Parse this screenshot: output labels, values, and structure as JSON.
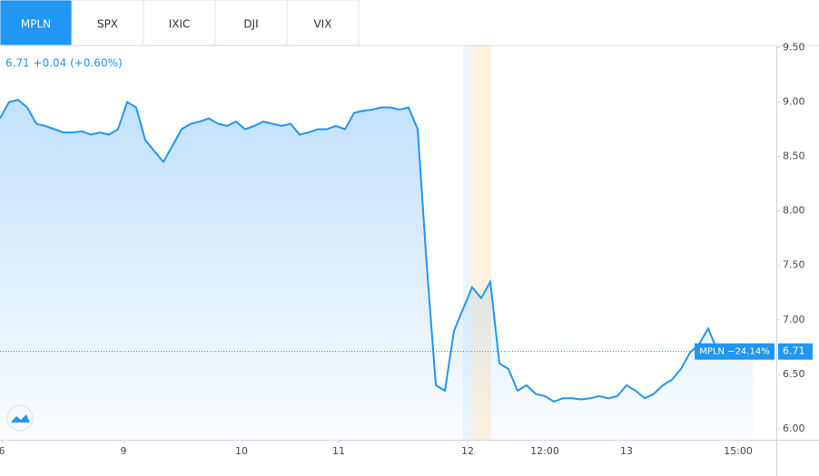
{
  "tabs": [
    "MPLN",
    "SPX",
    "IXIC",
    "DJI",
    "VIX"
  ],
  "chart_data": {
    "type": "line",
    "header": "6.71 +0.04 (+0.60%)",
    "series": [
      {
        "name": "MPLN",
        "color": "#2196f3",
        "values": [
          8.85,
          9.0,
          9.02,
          8.95,
          8.8,
          8.78,
          8.75,
          8.72,
          8.72,
          8.73,
          8.7,
          8.72,
          8.7,
          8.75,
          9.0,
          8.95,
          8.65,
          8.55,
          8.45,
          8.6,
          8.75,
          8.8,
          8.82,
          8.85,
          8.8,
          8.78,
          8.82,
          8.75,
          8.78,
          8.82,
          8.8,
          8.78,
          8.8,
          8.7,
          8.72,
          8.75,
          8.75,
          8.78,
          8.75,
          8.9,
          8.92,
          8.93,
          8.95,
          8.95,
          8.93,
          8.95,
          8.75,
          7.5,
          6.4,
          6.35,
          6.9,
          7.1,
          7.3,
          7.2,
          7.35,
          6.6,
          6.55,
          6.35,
          6.4,
          6.32,
          6.3,
          6.25,
          6.28,
          6.28,
          6.27,
          6.28,
          6.3,
          6.28,
          6.3,
          6.4,
          6.35,
          6.28,
          6.32,
          6.4,
          6.45,
          6.55,
          6.7,
          6.78,
          6.92,
          6.72,
          6.7,
          6.72,
          6.7,
          6.71
        ]
      }
    ],
    "xlim": [
      0,
      85.5
    ],
    "xticks": [
      {
        "value": 0.2,
        "label": "6"
      },
      {
        "value": 13.6,
        "label": "9"
      },
      {
        "value": 26.6,
        "label": "10"
      },
      {
        "value": 37.3,
        "label": "11"
      },
      {
        "value": 51.5,
        "label": "12"
      },
      {
        "value": 60,
        "label": "12:00"
      },
      {
        "value": 69,
        "label": "13"
      },
      {
        "value": 81.3,
        "label": "15:00"
      }
    ],
    "ylim": [
      5.9,
      9.52
    ],
    "yticks": [
      {
        "value": 6,
        "label": "6.00"
      },
      {
        "value": 6.5,
        "label": "6.50"
      },
      {
        "value": 7,
        "label": "7.00"
      },
      {
        "value": 7.5,
        "label": "7.50"
      },
      {
        "value": 8,
        "label": "8.00"
      },
      {
        "value": 8.5,
        "label": "8.50"
      },
      {
        "value": 9,
        "label": "9.00"
      },
      {
        "value": 9.5,
        "label": "9.50"
      }
    ],
    "last_price": 6.71,
    "price_tag": "MPLN −24.14%"
  }
}
